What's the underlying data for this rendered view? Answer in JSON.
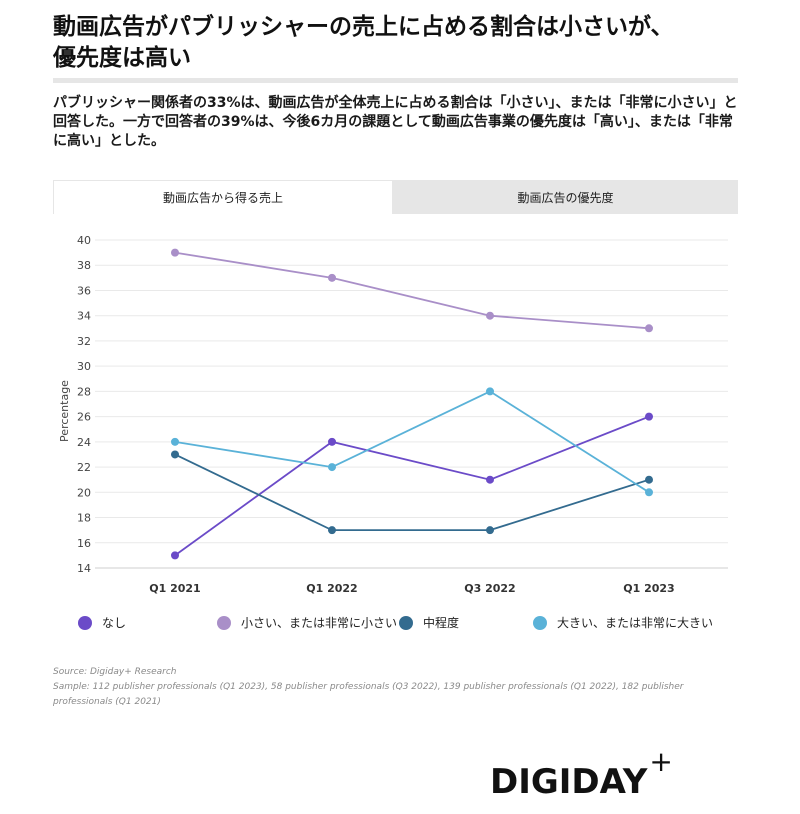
{
  "header": {
    "title_line1": "動画広告がパブリッシャーの売上に占める割合は小さいが、",
    "title_line2": "優先度は高い",
    "subtitle": "パブリッシャー関係者の33%は、動画広告が全体売上に占める割合は「小さい」、または「非常に小さい」と回答した。一方で回答者の39%は、今後6カ月の課題として動画広告事業の優先度は「高い」、または「非常に高い」とした。"
  },
  "tabs": [
    {
      "label": "動画広告から得る売上",
      "active": true
    },
    {
      "label": "動画広告の優先度",
      "active": false
    }
  ],
  "chart_data": {
    "type": "line",
    "categories": [
      "Q1 2021",
      "Q1 2022",
      "Q3 2022",
      "Q1 2023"
    ],
    "ylabel": "Percentage",
    "xlabel": "",
    "ylim": [
      14,
      40
    ],
    "yticks": [
      14,
      16,
      18,
      20,
      22,
      24,
      26,
      28,
      30,
      32,
      34,
      36,
      38,
      40
    ],
    "grid": true,
    "legend_position": "bottom",
    "series": [
      {
        "name": "なし",
        "color": "#6b4bc8",
        "values": [
          15,
          24,
          21,
          26
        ]
      },
      {
        "name": "小さい、または非常に小さい",
        "color": "#a98fc8",
        "values": [
          39,
          37,
          34,
          33
        ]
      },
      {
        "name": "中程度",
        "color": "#336b8f",
        "values": [
          23,
          17,
          17,
          21
        ]
      },
      {
        "name": "大きい、または非常に大きい",
        "color": "#5ab2d8",
        "values": [
          24,
          22,
          28,
          20
        ]
      }
    ]
  },
  "footer": {
    "source": "Source: Digiday+ Research",
    "sample": "Sample: 112 publisher professionals (Q1 2023), 58 publisher professionals (Q3 2022), 139 publisher professionals (Q1 2022), 182 publisher professionals (Q1 2021)"
  },
  "logo": {
    "text": "DIGIDAY",
    "plus": "+"
  }
}
